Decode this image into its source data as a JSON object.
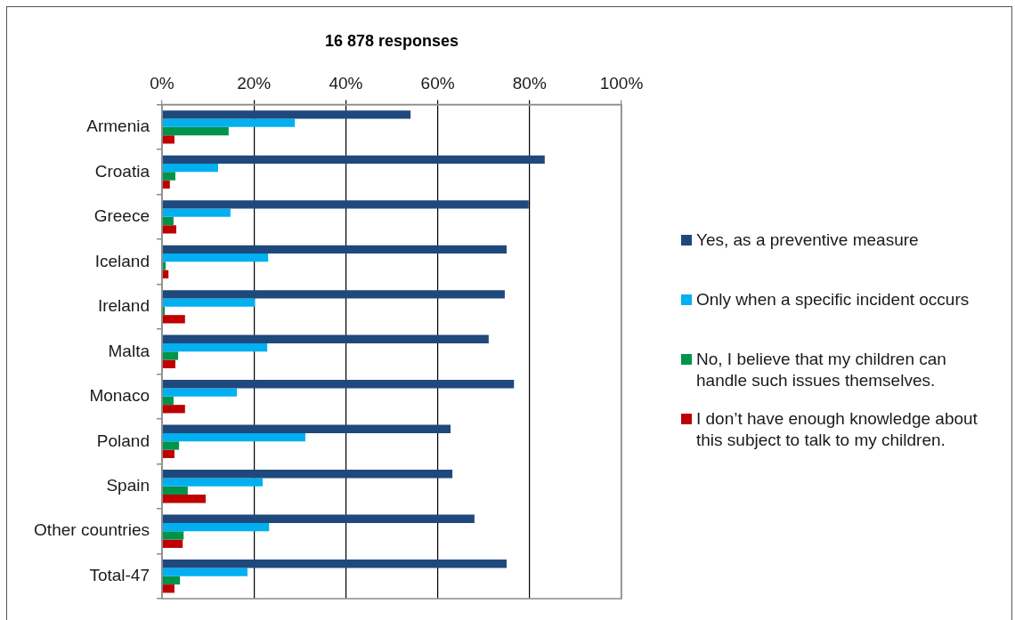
{
  "chart_data": {
    "type": "bar",
    "orientation": "horizontal",
    "title": "16 878 responses",
    "categories": [
      "Armenia",
      "Croatia",
      "Greece",
      "Iceland",
      "Ireland",
      "Malta",
      "Monaco",
      "Poland",
      "Spain",
      "Other countries",
      "Total-47"
    ],
    "series": [
      {
        "name": "Yes, as a preventive measure",
        "color": "#1f497d",
        "values": [
          54.1,
          83.3,
          79.8,
          75.0,
          74.6,
          71.1,
          76.6,
          62.8,
          63.2,
          68.0,
          75.0
        ]
      },
      {
        "name": "Only when a specific incident occurs",
        "color": "#00b0f0",
        "values": [
          28.9,
          12.2,
          14.9,
          23.1,
          20.2,
          22.9,
          16.3,
          31.2,
          21.9,
          23.3,
          18.6
        ]
      },
      {
        "name": "No, I believe that my children can handle such issues themselves.",
        "color": "#00944a",
        "values": [
          14.5,
          2.9,
          2.5,
          0.8,
          0.6,
          3.5,
          2.5,
          3.7,
          5.6,
          4.7,
          3.9
        ]
      },
      {
        "name": "I don’t have enough knowledge about this subject to talk to my children.",
        "color": "#c00000",
        "values": [
          2.7,
          1.7,
          3.1,
          1.4,
          5.0,
          2.9,
          5.0,
          2.7,
          9.5,
          4.5,
          2.7
        ]
      }
    ],
    "xlim": [
      0,
      100
    ],
    "xticks": [
      {
        "value": 0,
        "label": "0%"
      },
      {
        "value": 20,
        "label": "20%"
      },
      {
        "value": 40,
        "label": "40%"
      },
      {
        "value": 60,
        "label": "60%"
      },
      {
        "value": 80,
        "label": "80%"
      },
      {
        "value": 100,
        "label": "100%"
      }
    ],
    "grid": "x",
    "legend": "right"
  }
}
